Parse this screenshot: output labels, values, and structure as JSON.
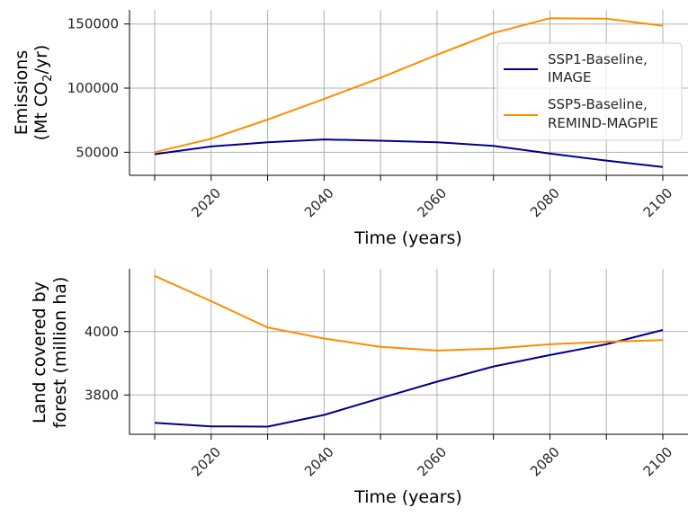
{
  "chart_data": [
    {
      "type": "line",
      "xlabel": "Time (years)",
      "ylabel_line1": "Emissions",
      "ylabel_line2_pre": "(Mt CO",
      "ylabel_line2_sub": "2",
      "ylabel_line2_post": "/yr)",
      "x": [
        2010,
        2020,
        2030,
        2040,
        2050,
        2060,
        2070,
        2080,
        2090,
        2100
      ],
      "xticks": [
        2020,
        2040,
        2060,
        2080,
        2100
      ],
      "xlim": [
        2010,
        2100
      ],
      "yticks": [
        50000,
        100000,
        150000
      ],
      "ylim": [
        32000,
        161000
      ],
      "grid": true,
      "legend_position": "right",
      "series": [
        {
          "name_line1": "SSP1-Baseline,",
          "name_line2": "IMAGE",
          "color": "#00008b",
          "values": [
            48500,
            54500,
            57800,
            60000,
            59000,
            57800,
            55000,
            49000,
            43500,
            38500
          ]
        },
        {
          "name_line1": "SSP5-Baseline,",
          "name_line2": "REMIND-MAGPIE",
          "color": "#ff8c00",
          "values": [
            50000,
            60500,
            75500,
            91500,
            108000,
            126000,
            143000,
            154500,
            154200,
            148500
          ]
        }
      ]
    },
    {
      "type": "line",
      "xlabel": "Time (years)",
      "ylabel_line1": "Land covered by",
      "ylabel_line2": "forest (million ha)",
      "x": [
        2010,
        2020,
        2030,
        2040,
        2050,
        2060,
        2070,
        2080,
        2090,
        2100
      ],
      "xticks": [
        2020,
        2040,
        2060,
        2080,
        2100
      ],
      "xlim": [
        2010,
        2100
      ],
      "yticks": [
        3800,
        4000
      ],
      "ylim": [
        3676,
        4198
      ],
      "grid": true,
      "series": [
        {
          "color": "#00008b",
          "values": [
            3712,
            3701,
            3700,
            3737,
            3790,
            3842,
            3890,
            3926,
            3960,
            4005
          ]
        },
        {
          "color": "#ff8c00",
          "values": [
            4176,
            4096,
            4013,
            3978,
            3952,
            3940,
            3946,
            3960,
            3968,
            3973
          ]
        }
      ]
    }
  ]
}
